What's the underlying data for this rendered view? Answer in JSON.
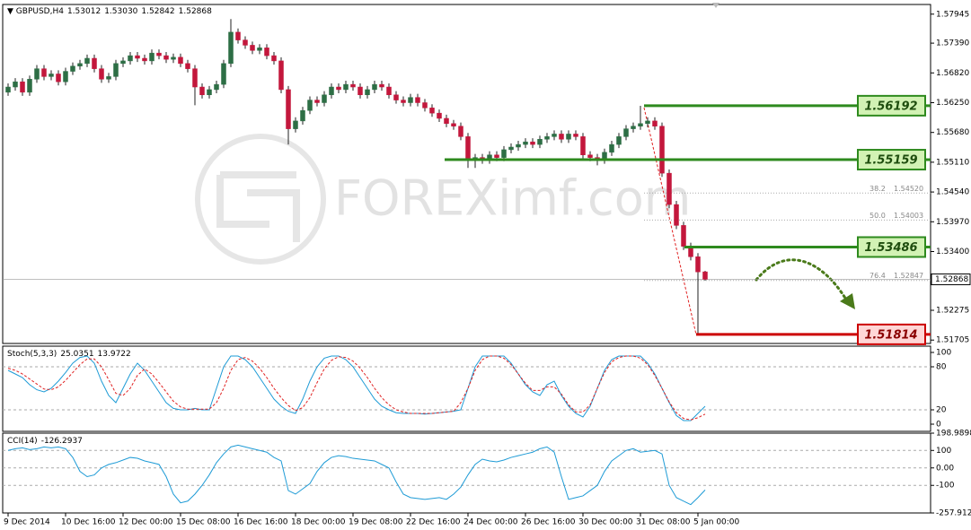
{
  "chart_data": [
    {
      "type": "candlestick",
      "title": "GBPUSD,H4",
      "last_labels": [
        "1.53012",
        "1.53030",
        "1.52842",
        "1.52868"
      ],
      "watermark": "FOREXimf.com",
      "categories": [
        "9 Dec 2014",
        null,
        null,
        null,
        null,
        null,
        null,
        null,
        "10 Dec 16:00",
        null,
        null,
        null,
        null,
        null,
        null,
        null,
        "12 Dec 00:00",
        null,
        null,
        null,
        null,
        null,
        null,
        null,
        "15 Dec 08:00",
        null,
        null,
        null,
        null,
        null,
        null,
        null,
        "16 Dec 16:00",
        null,
        null,
        null,
        null,
        null,
        null,
        null,
        "18 Dec 00:00",
        null,
        null,
        null,
        null,
        null,
        null,
        null,
        "19 Dec 08:00",
        null,
        null,
        null,
        null,
        null,
        null,
        null,
        "22 Dec 16:00",
        null,
        null,
        null,
        null,
        null,
        null,
        null,
        "24 Dec 00:00",
        null,
        null,
        null,
        null,
        null,
        null,
        null,
        "26 Dec 16:00",
        null,
        null,
        null,
        null,
        null,
        null,
        null,
        "30 Dec 00:00",
        null,
        null,
        null,
        null,
        null,
        null,
        null,
        "31 Dec 08:00",
        null,
        null,
        null,
        null,
        null,
        null,
        null,
        "5 Jan 00:00",
        null
      ],
      "ohlc": [
        [
          1.5645,
          1.5662,
          1.5638,
          1.5655
        ],
        [
          1.5655,
          1.5672,
          1.5648,
          1.5665
        ],
        [
          1.5665,
          1.5672,
          1.5638,
          1.5645
        ],
        [
          1.5645,
          1.5677,
          1.5638,
          1.567
        ],
        [
          1.567,
          1.5697,
          1.5663,
          1.569
        ],
        [
          1.569,
          1.5697,
          1.5668,
          1.5675
        ],
        [
          1.5675,
          1.5687,
          1.5668,
          1.568
        ],
        [
          1.568,
          1.5687,
          1.5658,
          1.5665
        ],
        [
          1.5665,
          1.5692,
          1.5658,
          1.5685
        ],
        [
          1.5685,
          1.5702,
          1.5678,
          1.5695
        ],
        [
          1.5695,
          1.5707,
          1.5688,
          1.57
        ],
        [
          1.57,
          1.5717,
          1.5693,
          1.571
        ],
        [
          1.571,
          1.5717,
          1.5683,
          1.569
        ],
        [
          1.569,
          1.5697,
          1.5663,
          1.567
        ],
        [
          1.567,
          1.5682,
          1.5663,
          1.5675
        ],
        [
          1.5675,
          1.5707,
          1.5668,
          1.57
        ],
        [
          1.57,
          1.5712,
          1.5693,
          1.5705
        ],
        [
          1.5705,
          1.5722,
          1.5698,
          1.5715
        ],
        [
          1.5715,
          1.5722,
          1.5703,
          1.571
        ],
        [
          1.571,
          1.5717,
          1.5698,
          1.5705
        ],
        [
          1.5705,
          1.5727,
          1.5698,
          1.572
        ],
        [
          1.572,
          1.5727,
          1.5708,
          1.5715
        ],
        [
          1.5715,
          1.5722,
          1.5701,
          1.5708
        ],
        [
          1.5708,
          1.5719,
          1.5701,
          1.5712
        ],
        [
          1.5712,
          1.5719,
          1.5693,
          1.57
        ],
        [
          1.57,
          1.5707,
          1.5683,
          1.569
        ],
        [
          1.569,
          1.5697,
          1.562,
          1.5655
        ],
        [
          1.5655,
          1.5662,
          1.5633,
          1.564
        ],
        [
          1.564,
          1.5657,
          1.5633,
          1.565
        ],
        [
          1.565,
          1.5667,
          1.5643,
          1.566
        ],
        [
          1.566,
          1.5707,
          1.5653,
          1.57
        ],
        [
          1.57,
          1.5785,
          1.5693,
          1.576
        ],
        [
          1.576,
          1.5767,
          1.5738,
          1.5745
        ],
        [
          1.5745,
          1.5752,
          1.5728,
          1.5735
        ],
        [
          1.5735,
          1.5742,
          1.5718,
          1.5725
        ],
        [
          1.5725,
          1.5737,
          1.5718,
          1.573
        ],
        [
          1.573,
          1.5737,
          1.5708,
          1.5715
        ],
        [
          1.5715,
          1.5722,
          1.5698,
          1.5705
        ],
        [
          1.5705,
          1.5712,
          1.5643,
          1.565
        ],
        [
          1.565,
          1.5657,
          1.5545,
          1.5575
        ],
        [
          1.5575,
          1.5597,
          1.5568,
          1.559
        ],
        [
          1.559,
          1.5617,
          1.5583,
          1.561
        ],
        [
          1.561,
          1.5637,
          1.5603,
          1.563
        ],
        [
          1.563,
          1.5637,
          1.5618,
          1.5625
        ],
        [
          1.5625,
          1.5647,
          1.5618,
          1.564
        ],
        [
          1.564,
          1.5662,
          1.5633,
          1.5655
        ],
        [
          1.5655,
          1.5662,
          1.5643,
          1.565
        ],
        [
          1.565,
          1.5667,
          1.5643,
          1.566
        ],
        [
          1.566,
          1.5667,
          1.5648,
          1.5655
        ],
        [
          1.5655,
          1.5662,
          1.5633,
          1.564
        ],
        [
          1.564,
          1.5657,
          1.5633,
          1.565
        ],
        [
          1.565,
          1.5667,
          1.5643,
          1.566
        ],
        [
          1.566,
          1.5667,
          1.5648,
          1.5655
        ],
        [
          1.5655,
          1.5662,
          1.5633,
          1.564
        ],
        [
          1.564,
          1.5647,
          1.5623,
          1.563
        ],
        [
          1.563,
          1.5637,
          1.5618,
          1.5625
        ],
        [
          1.5625,
          1.5642,
          1.5618,
          1.5635
        ],
        [
          1.5635,
          1.5642,
          1.5618,
          1.5625
        ],
        [
          1.5625,
          1.5632,
          1.5608,
          1.5615
        ],
        [
          1.5615,
          1.5622,
          1.5598,
          1.5605
        ],
        [
          1.5605,
          1.5612,
          1.5588,
          1.5595
        ],
        [
          1.5595,
          1.5602,
          1.5578,
          1.5585
        ],
        [
          1.5585,
          1.5592,
          1.5573,
          1.558
        ],
        [
          1.558,
          1.5587,
          1.5553,
          1.556
        ],
        [
          1.556,
          1.5567,
          1.55,
          1.5515
        ],
        [
          1.5515,
          1.5527,
          1.55,
          1.552
        ],
        [
          1.552,
          1.5527,
          1.5508,
          1.5515
        ],
        [
          1.5515,
          1.5532,
          1.5508,
          1.5525
        ],
        [
          1.5525,
          1.5532,
          1.5513,
          1.552
        ],
        [
          1.552,
          1.5542,
          1.5513,
          1.5535
        ],
        [
          1.5535,
          1.5547,
          1.5528,
          1.554
        ],
        [
          1.554,
          1.5552,
          1.5533,
          1.5545
        ],
        [
          1.5545,
          1.5557,
          1.5538,
          1.555
        ],
        [
          1.555,
          1.5557,
          1.5538,
          1.5545
        ],
        [
          1.5545,
          1.5562,
          1.5538,
          1.5555
        ],
        [
          1.5555,
          1.5567,
          1.5548,
          1.556
        ],
        [
          1.556,
          1.5572,
          1.5553,
          1.5565
        ],
        [
          1.5565,
          1.5572,
          1.5548,
          1.5555
        ],
        [
          1.5555,
          1.5572,
          1.5548,
          1.5565
        ],
        [
          1.5565,
          1.5572,
          1.5553,
          1.556
        ],
        [
          1.556,
          1.5567,
          1.5518,
          1.5525
        ],
        [
          1.5525,
          1.5532,
          1.5513,
          1.552
        ],
        [
          1.552,
          1.5527,
          1.5505,
          1.5515
        ],
        [
          1.5515,
          1.5537,
          1.5508,
          1.553
        ],
        [
          1.553,
          1.5552,
          1.5523,
          1.5545
        ],
        [
          1.5545,
          1.5567,
          1.5538,
          1.556
        ],
        [
          1.556,
          1.5582,
          1.5553,
          1.5575
        ],
        [
          1.5575,
          1.5587,
          1.5568,
          1.558
        ],
        [
          1.558,
          1.5619,
          1.5573,
          1.5585
        ],
        [
          1.5585,
          1.5597,
          1.5578,
          1.559
        ],
        [
          1.559,
          1.5597,
          1.5573,
          1.558
        ],
        [
          1.558,
          1.5587,
          1.5483,
          1.549
        ],
        [
          1.549,
          1.5497,
          1.5423,
          1.543
        ],
        [
          1.543,
          1.5437,
          1.5383,
          1.539
        ],
        [
          1.539,
          1.5397,
          1.5343,
          1.535
        ],
        [
          1.535,
          1.5357,
          1.5323,
          1.533
        ],
        [
          1.533,
          1.5337,
          1.5181,
          1.5301
        ],
        [
          1.53012,
          1.5303,
          1.52842,
          1.52868
        ]
      ],
      "up_color": "#2d6e45",
      "down_color": "#c3173c",
      "ylim": [
        1.5164,
        1.5813
      ],
      "yticks": [
        1.57945,
        {
          "value": 1.5739,
          "label": "1.57390"
        },
        {
          "value": 1.5682,
          "label": "1.56820"
        },
        {
          "value": 1.5625,
          "label": "1.56250"
        },
        {
          "value": 1.5568,
          "label": "1.55680"
        },
        {
          "value": 1.5511,
          "label": "1.55110"
        },
        {
          "value": 1.5454,
          "label": "1.54540"
        },
        {
          "value": 1.5397,
          "label": "1.53970"
        },
        {
          "value": 1.534,
          "label": "1.53400"
        },
        1.52275,
        1.51705
      ],
      "levels": [
        1.56192,
        1.55159,
        1.53486,
        1.51814
      ],
      "level_colors": [
        "#2e8a1e",
        "#2e8a1e",
        "#2e8a1e",
        "#cc0000"
      ],
      "fib_levels": [
        {
          "ratio": "38.2",
          "price": {
            "value": 1.5452,
            "label": "1.54520"
          }
        },
        {
          "ratio": "50.0",
          "price": 1.54003
        },
        {
          "ratio": "76.4",
          "price": 1.52847
        }
      ]
    },
    {
      "type": "line",
      "title": "Stoch(5,3,3)",
      "series": [
        {
          "color": "#1e9bd6",
          "values": [
            75,
            70,
            65,
            55,
            48,
            45,
            50,
            60,
            72,
            85,
            93,
            95,
            85,
            60,
            40,
            30,
            50,
            70,
            85,
            75,
            60,
            45,
            30,
            22,
            20,
            20,
            22,
            20,
            20,
            50,
            80,
            95,
            95,
            90,
            80,
            65,
            50,
            35,
            25,
            18,
            15,
            35,
            60,
            80,
            92,
            95,
            95,
            90,
            80,
            65,
            50,
            35,
            25,
            20,
            16,
            15,
            15,
            15,
            14,
            15,
            16,
            17,
            18,
            20,
            50,
            80,
            95,
            95,
            95,
            95,
            85,
            70,
            55,
            45,
            40,
            55,
            60,
            40,
            25,
            15,
            10,
            25,
            50,
            75,
            90,
            95,
            95,
            95,
            95,
            85,
            70,
            50,
            30,
            12,
            5,
            5,
            15,
            25.0351
          ]
        },
        {
          "color": "#e02020",
          "dashed": true,
          "values": [
            78,
            75,
            70,
            63,
            56,
            49,
            48,
            52,
            61,
            72,
            83,
            91,
            91,
            80,
            62,
            43,
            40,
            50,
            68,
            77,
            70,
            58,
            45,
            32,
            24,
            21,
            21,
            21,
            21,
            30,
            50,
            75,
            90,
            93,
            88,
            78,
            65,
            50,
            37,
            26,
            19,
            23,
            37,
            58,
            77,
            89,
            94,
            93,
            88,
            78,
            65,
            50,
            37,
            27,
            20,
            17,
            15,
            15,
            15,
            15,
            16,
            17,
            18,
            30,
            50,
            75,
            90,
            95,
            95,
            92,
            83,
            70,
            57,
            47,
            47,
            52,
            52,
            42,
            27,
            17,
            17,
            27,
            50,
            72,
            87,
            93,
            95,
            95,
            92,
            83,
            68,
            50,
            31,
            16,
            8,
            6,
            9,
            13.9722
          ]
        }
      ],
      "ylim": [
        -10,
        108.75
      ],
      "yticks": [
        100,
        80,
        20,
        0
      ]
    },
    {
      "type": "line",
      "title": "CCI(14)",
      "series": [
        {
          "color": "#1e9bd6",
          "values": [
            100,
            110,
            115,
            105,
            110,
            120,
            115,
            120,
            110,
            60,
            -20,
            -50,
            -40,
            0,
            20,
            30,
            45,
            60,
            55,
            40,
            30,
            20,
            -50,
            -150,
            -200,
            -190,
            -150,
            -100,
            -40,
            30,
            80,
            120,
            130,
            120,
            110,
            100,
            90,
            60,
            40,
            -130,
            -150,
            -120,
            -90,
            -20,
            30,
            60,
            70,
            65,
            55,
            50,
            45,
            40,
            20,
            0,
            -80,
            -150,
            -170,
            -175,
            -180,
            -175,
            -170,
            -180,
            -150,
            -110,
            -40,
            20,
            50,
            40,
            35,
            45,
            60,
            70,
            80,
            90,
            110,
            120,
            90,
            -50,
            -180,
            -170,
            -160,
            -130,
            -100,
            -20,
            40,
            70,
            100,
            110,
            90,
            95,
            100,
            80,
            -100,
            -170,
            -190,
            -210,
            -170,
            -126.2937
          ]
        }
      ],
      "ylim": [
        -257.9125,
        198.9898
      ],
      "yticks": [
        198.9898,
        100,
        {
          "value": 0,
          "label": "0.00"
        },
        -100,
        -257.9125
      ]
    }
  ]
}
